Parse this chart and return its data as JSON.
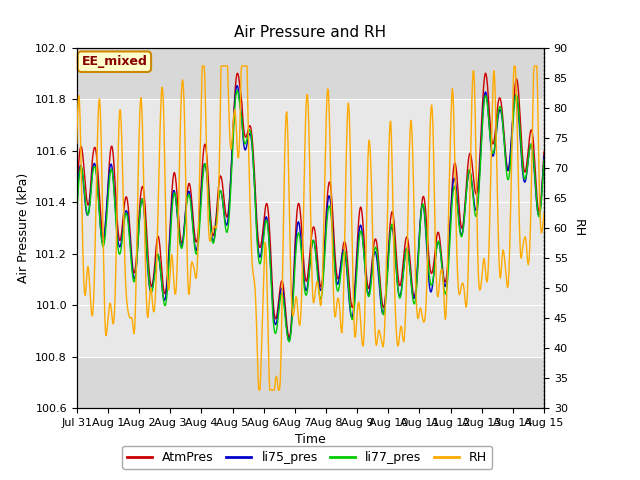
{
  "title": "Air Pressure and RH",
  "xlabel": "Time",
  "ylabel_left": "Air Pressure (kPa)",
  "ylabel_right": "RH",
  "annotation": "EE_mixed",
  "ylim_left": [
    100.6,
    102.0
  ],
  "ylim_right": [
    30,
    90
  ],
  "yticks_left": [
    100.6,
    100.8,
    101.0,
    101.2,
    101.4,
    101.6,
    101.8,
    102.0
  ],
  "yticks_right": [
    30,
    35,
    40,
    45,
    50,
    55,
    60,
    65,
    70,
    75,
    80,
    85,
    90
  ],
  "xtick_labels": [
    "Jul 31",
    "Aug 1",
    "Aug 2",
    "Aug 3",
    "Aug 4",
    "Aug 5",
    "Aug 6",
    "Aug 7",
    "Aug 8",
    "Aug 9",
    "Aug 10",
    "Aug 11",
    "Aug 12",
    "Aug 13",
    "Aug 14",
    "Aug 15"
  ],
  "colors": {
    "AtmPres": "#cc0000",
    "li75_pres": "#0000cc",
    "li77_pres": "#00cc00",
    "RH": "#ffaa00"
  },
  "shade_band": [
    100.8,
    101.8
  ],
  "bg_inner": "#d8d8d8",
  "bg_outer": "#ffffff",
  "grid_color": "#ffffff",
  "annotation_bg": "#ffffcc",
  "annotation_border": "#cc8800",
  "annotation_text_color": "#880000",
  "linewidth": 1.0
}
